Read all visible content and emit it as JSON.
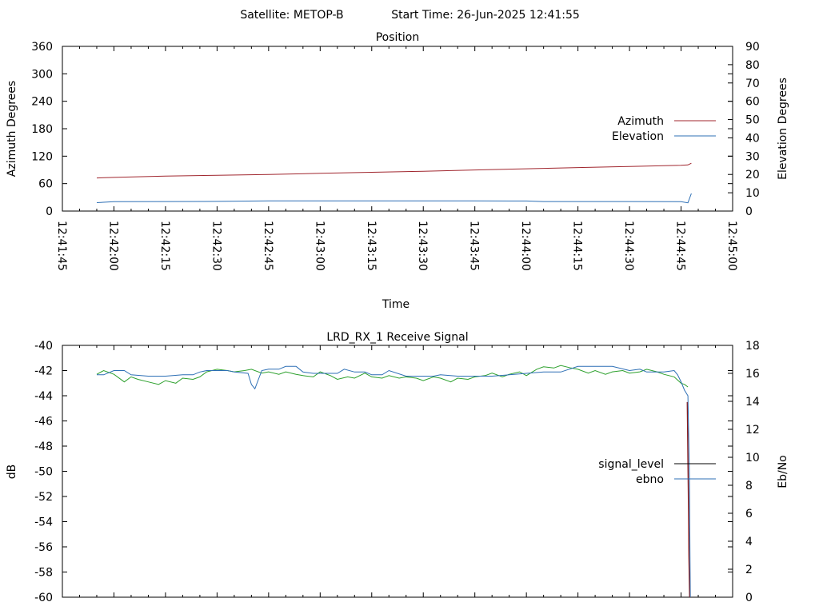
{
  "header": {
    "satellite": "Satellite: METOP-B",
    "start_time": "Start Time: 26-Jun-2025 12:41:55"
  },
  "chart_data": [
    {
      "type": "line",
      "title": "Position",
      "xlabel": "Time",
      "ylabel": "Azimuth Degrees",
      "y2label": "Elevation Degrees",
      "xlim_seconds": [
        0,
        195
      ],
      "ylim": [
        0,
        360
      ],
      "y2lim": [
        0,
        90
      ],
      "x_ticks": [
        "12:41:45",
        "12:42:00",
        "12:42:15",
        "12:42:30",
        "12:42:45",
        "12:43:00",
        "12:43:15",
        "12:43:30",
        "12:43:45",
        "12:44:00",
        "12:44:15",
        "12:44:30",
        "12:44:45",
        "12:45:00"
      ],
      "y_ticks": [
        0,
        60,
        120,
        180,
        240,
        300,
        360
      ],
      "y2_ticks": [
        0,
        10,
        20,
        30,
        40,
        50,
        60,
        70,
        80,
        90
      ],
      "legend_position": "right",
      "series": [
        {
          "name": "Azimuth",
          "axis": "y",
          "color": "#a0262e",
          "x": [
            10,
            15,
            30,
            45,
            60,
            75,
            90,
            105,
            120,
            135,
            150,
            165,
            180,
            182,
            183
          ],
          "y": [
            72.3,
            73.6,
            76.5,
            78.2,
            80.0,
            82.4,
            84.7,
            87.1,
            89.8,
            92.5,
            95.1,
            97.6,
            100.1,
            100.8,
            104.5
          ]
        },
        {
          "name": "Elevation",
          "axis": "y2",
          "color": "#2d6fb5",
          "x": [
            10,
            15,
            30,
            45,
            60,
            75,
            90,
            105,
            120,
            135,
            140,
            150,
            165,
            180,
            182,
            183
          ],
          "y": [
            4.6,
            5.1,
            5.2,
            5.3,
            5.6,
            5.6,
            5.6,
            5.6,
            5.6,
            5.5,
            5.2,
            5.2,
            5.2,
            5.1,
            4.5,
            9.6
          ]
        }
      ]
    },
    {
      "type": "line",
      "title": "LRD_RX_1 Receive Signal",
      "ylabel": "dB",
      "y2label": "Eb/No",
      "xlim_seconds": [
        0,
        195
      ],
      "ylim": [
        -60,
        -40
      ],
      "y2lim": [
        0,
        18
      ],
      "y_ticks": [
        -60,
        -58,
        -56,
        -54,
        -52,
        -50,
        -48,
        -46,
        -44,
        -42,
        -40
      ],
      "y2_ticks": [
        0,
        2,
        4,
        6,
        8,
        10,
        12,
        14,
        16,
        18
      ],
      "legend_position": "right",
      "series": [
        {
          "name": "signal_level",
          "axis": "y",
          "color": "#8b1a1a",
          "x": [
            181.8,
            181.9,
            182.0,
            182.1,
            182.2,
            182.3,
            182.4,
            182.5
          ],
          "y": [
            -44.5,
            -46.6,
            -49.0,
            -51.6,
            -54.2,
            -56.8,
            -58.6,
            -60.0
          ]
        },
        {
          "name": "",
          "axis": "y",
          "color": "#2ca02c",
          "x": [
            10,
            12,
            15,
            18,
            20,
            22,
            25,
            28,
            30,
            33,
            35,
            38,
            40,
            42,
            45,
            48,
            50,
            53,
            55,
            58,
            60,
            63,
            65,
            68,
            70,
            73,
            75,
            78,
            80,
            83,
            85,
            88,
            90,
            93,
            95,
            98,
            100,
            103,
            105,
            108,
            110,
            113,
            115,
            118,
            120,
            123,
            125,
            128,
            130,
            133,
            135,
            138,
            140,
            143,
            145,
            148,
            150,
            153,
            155,
            158,
            160,
            163,
            165,
            168,
            170,
            173,
            175,
            178,
            180,
            181,
            182
          ],
          "y": [
            -42.3,
            -42.0,
            -42.3,
            -42.9,
            -42.5,
            -42.7,
            -42.9,
            -43.1,
            -42.8,
            -43.0,
            -42.6,
            -42.7,
            -42.5,
            -42.1,
            -41.9,
            -42.0,
            -42.1,
            -42.0,
            -41.9,
            -42.2,
            -42.1,
            -42.3,
            -42.1,
            -42.3,
            -42.4,
            -42.5,
            -42.1,
            -42.4,
            -42.7,
            -42.5,
            -42.6,
            -42.2,
            -42.5,
            -42.6,
            -42.4,
            -42.6,
            -42.5,
            -42.6,
            -42.8,
            -42.5,
            -42.6,
            -42.9,
            -42.6,
            -42.7,
            -42.5,
            -42.4,
            -42.2,
            -42.5,
            -42.3,
            -42.1,
            -42.4,
            -41.9,
            -41.7,
            -41.8,
            -41.6,
            -41.8,
            -41.9,
            -42.2,
            -42.0,
            -42.3,
            -42.1,
            -42.0,
            -42.2,
            -42.1,
            -41.9,
            -42.1,
            -42.3,
            -42.5,
            -43.0,
            -43.1,
            -43.3
          ]
        },
        {
          "name": "ebno",
          "axis": "y2",
          "color": "#2d6fb5",
          "x": [
            10,
            12,
            15,
            18,
            20,
            25,
            30,
            35,
            38,
            40,
            42,
            45,
            48,
            50,
            54,
            55,
            56,
            58,
            60,
            63,
            65,
            68,
            70,
            73,
            75,
            80,
            82,
            85,
            88,
            90,
            93,
            95,
            100,
            105,
            108,
            110,
            115,
            120,
            125,
            130,
            135,
            140,
            145,
            150,
            155,
            160,
            165,
            168,
            170,
            175,
            178,
            179,
            180,
            181,
            182,
            182.4,
            182.7
          ],
          "y": [
            15.9,
            15.9,
            16.2,
            16.2,
            15.9,
            15.8,
            15.8,
            15.9,
            15.9,
            16.1,
            16.2,
            16.2,
            16.2,
            16.1,
            16.0,
            15.2,
            14.9,
            16.2,
            16.3,
            16.3,
            16.5,
            16.5,
            16.1,
            16.0,
            16.0,
            16.0,
            16.3,
            16.1,
            16.1,
            15.9,
            15.9,
            16.2,
            15.8,
            15.8,
            15.8,
            15.9,
            15.8,
            15.8,
            15.8,
            15.9,
            16.0,
            16.1,
            16.1,
            16.5,
            16.5,
            16.5,
            16.2,
            16.3,
            16.1,
            16.1,
            16.2,
            15.9,
            15.4,
            14.8,
            14.4,
            9.0,
            0.0
          ]
        }
      ]
    }
  ]
}
